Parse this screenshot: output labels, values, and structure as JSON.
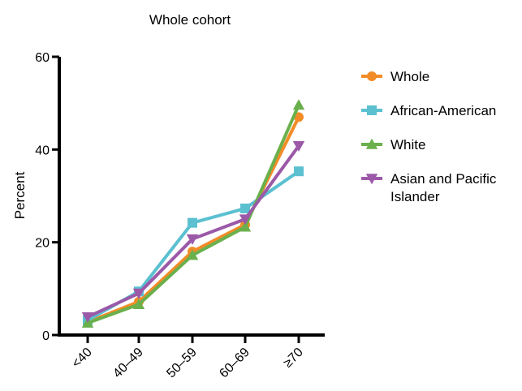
{
  "chart_data": {
    "type": "line",
    "title": "Whole cohort",
    "xlabel": "",
    "ylabel": "Percent",
    "categories": [
      "<40",
      "40–49",
      "50–59",
      "60–69",
      "≥70"
    ],
    "yticks": [
      "0",
      "20",
      "40",
      "60"
    ],
    "ylim": [
      0,
      60
    ],
    "grid": false,
    "legend_position": "right",
    "series": [
      {
        "name": "Whole",
        "color": "#f28c28",
        "marker": "circle",
        "values": [
          2.8,
          7.2,
          18.0,
          23.8,
          47.0
        ]
      },
      {
        "name": "African-American",
        "color": "#5bc0d0",
        "marker": "square",
        "values": [
          3.2,
          9.4,
          24.2,
          27.3,
          35.3
        ]
      },
      {
        "name": "White",
        "color": "#6ab04c",
        "marker": "triangle-up",
        "values": [
          2.6,
          6.6,
          17.2,
          23.3,
          49.6
        ]
      },
      {
        "name": "Asian and Pacific Islander",
        "legend_lines": [
          "Asian and Pacific",
          "Islander"
        ],
        "color": "#9b59a8",
        "marker": "triangle-down",
        "values": [
          3.9,
          9.0,
          20.7,
          25.0,
          40.8
        ]
      }
    ]
  }
}
